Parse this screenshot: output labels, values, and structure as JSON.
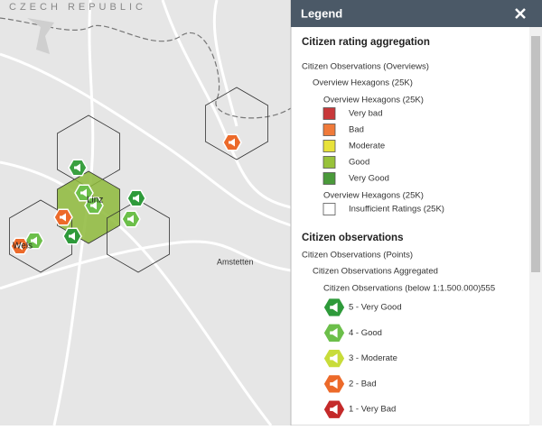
{
  "map": {
    "country_label": "CZECH REPUBLIC",
    "places": [
      "Linz",
      "Wels",
      "Amstetten"
    ]
  },
  "legend": {
    "title": "Legend",
    "sections": [
      {
        "title": "Citizen rating aggregation",
        "layer": "Citizen Observations (Overviews)",
        "sublayer": "Overview Hexagons (25K)",
        "groups": [
          {
            "title": "Overview Hexagons (25K)",
            "symbol": "square",
            "items": [
              {
                "label": "Very bad",
                "color": "#c8383a"
              },
              {
                "label": "Bad",
                "color": "#f07a3a"
              },
              {
                "label": "Moderate",
                "color": "#e8e23a"
              },
              {
                "label": "Good",
                "color": "#98c23a"
              },
              {
                "label": "Very Good",
                "color": "#4a9a3a"
              }
            ]
          },
          {
            "title": "Overview Hexagons (25K)",
            "symbol": "square",
            "items": [
              {
                "label": "Insufficient Ratings (25K)",
                "color": "#ffffff"
              }
            ]
          }
        ]
      },
      {
        "title": "Citizen observations",
        "layer": "Citizen Observations (Points)",
        "sublayer": "Citizen Observations Aggregated",
        "groups": [
          {
            "title": "Citizen Observations (below 1:1.500.000)555",
            "symbol": "hex",
            "items": [
              {
                "label": "5 - Very Good",
                "color": "#2e9a3a"
              },
              {
                "label": "4 - Good",
                "color": "#6cbf4a"
              },
              {
                "label": "3 - Moderate",
                "color": "#c8dc3a"
              },
              {
                "label": "2 - Bad",
                "color": "#ec6a2a"
              },
              {
                "label": "1 - Very Bad",
                "color": "#c42a2a"
              }
            ]
          }
        ]
      }
    ]
  }
}
